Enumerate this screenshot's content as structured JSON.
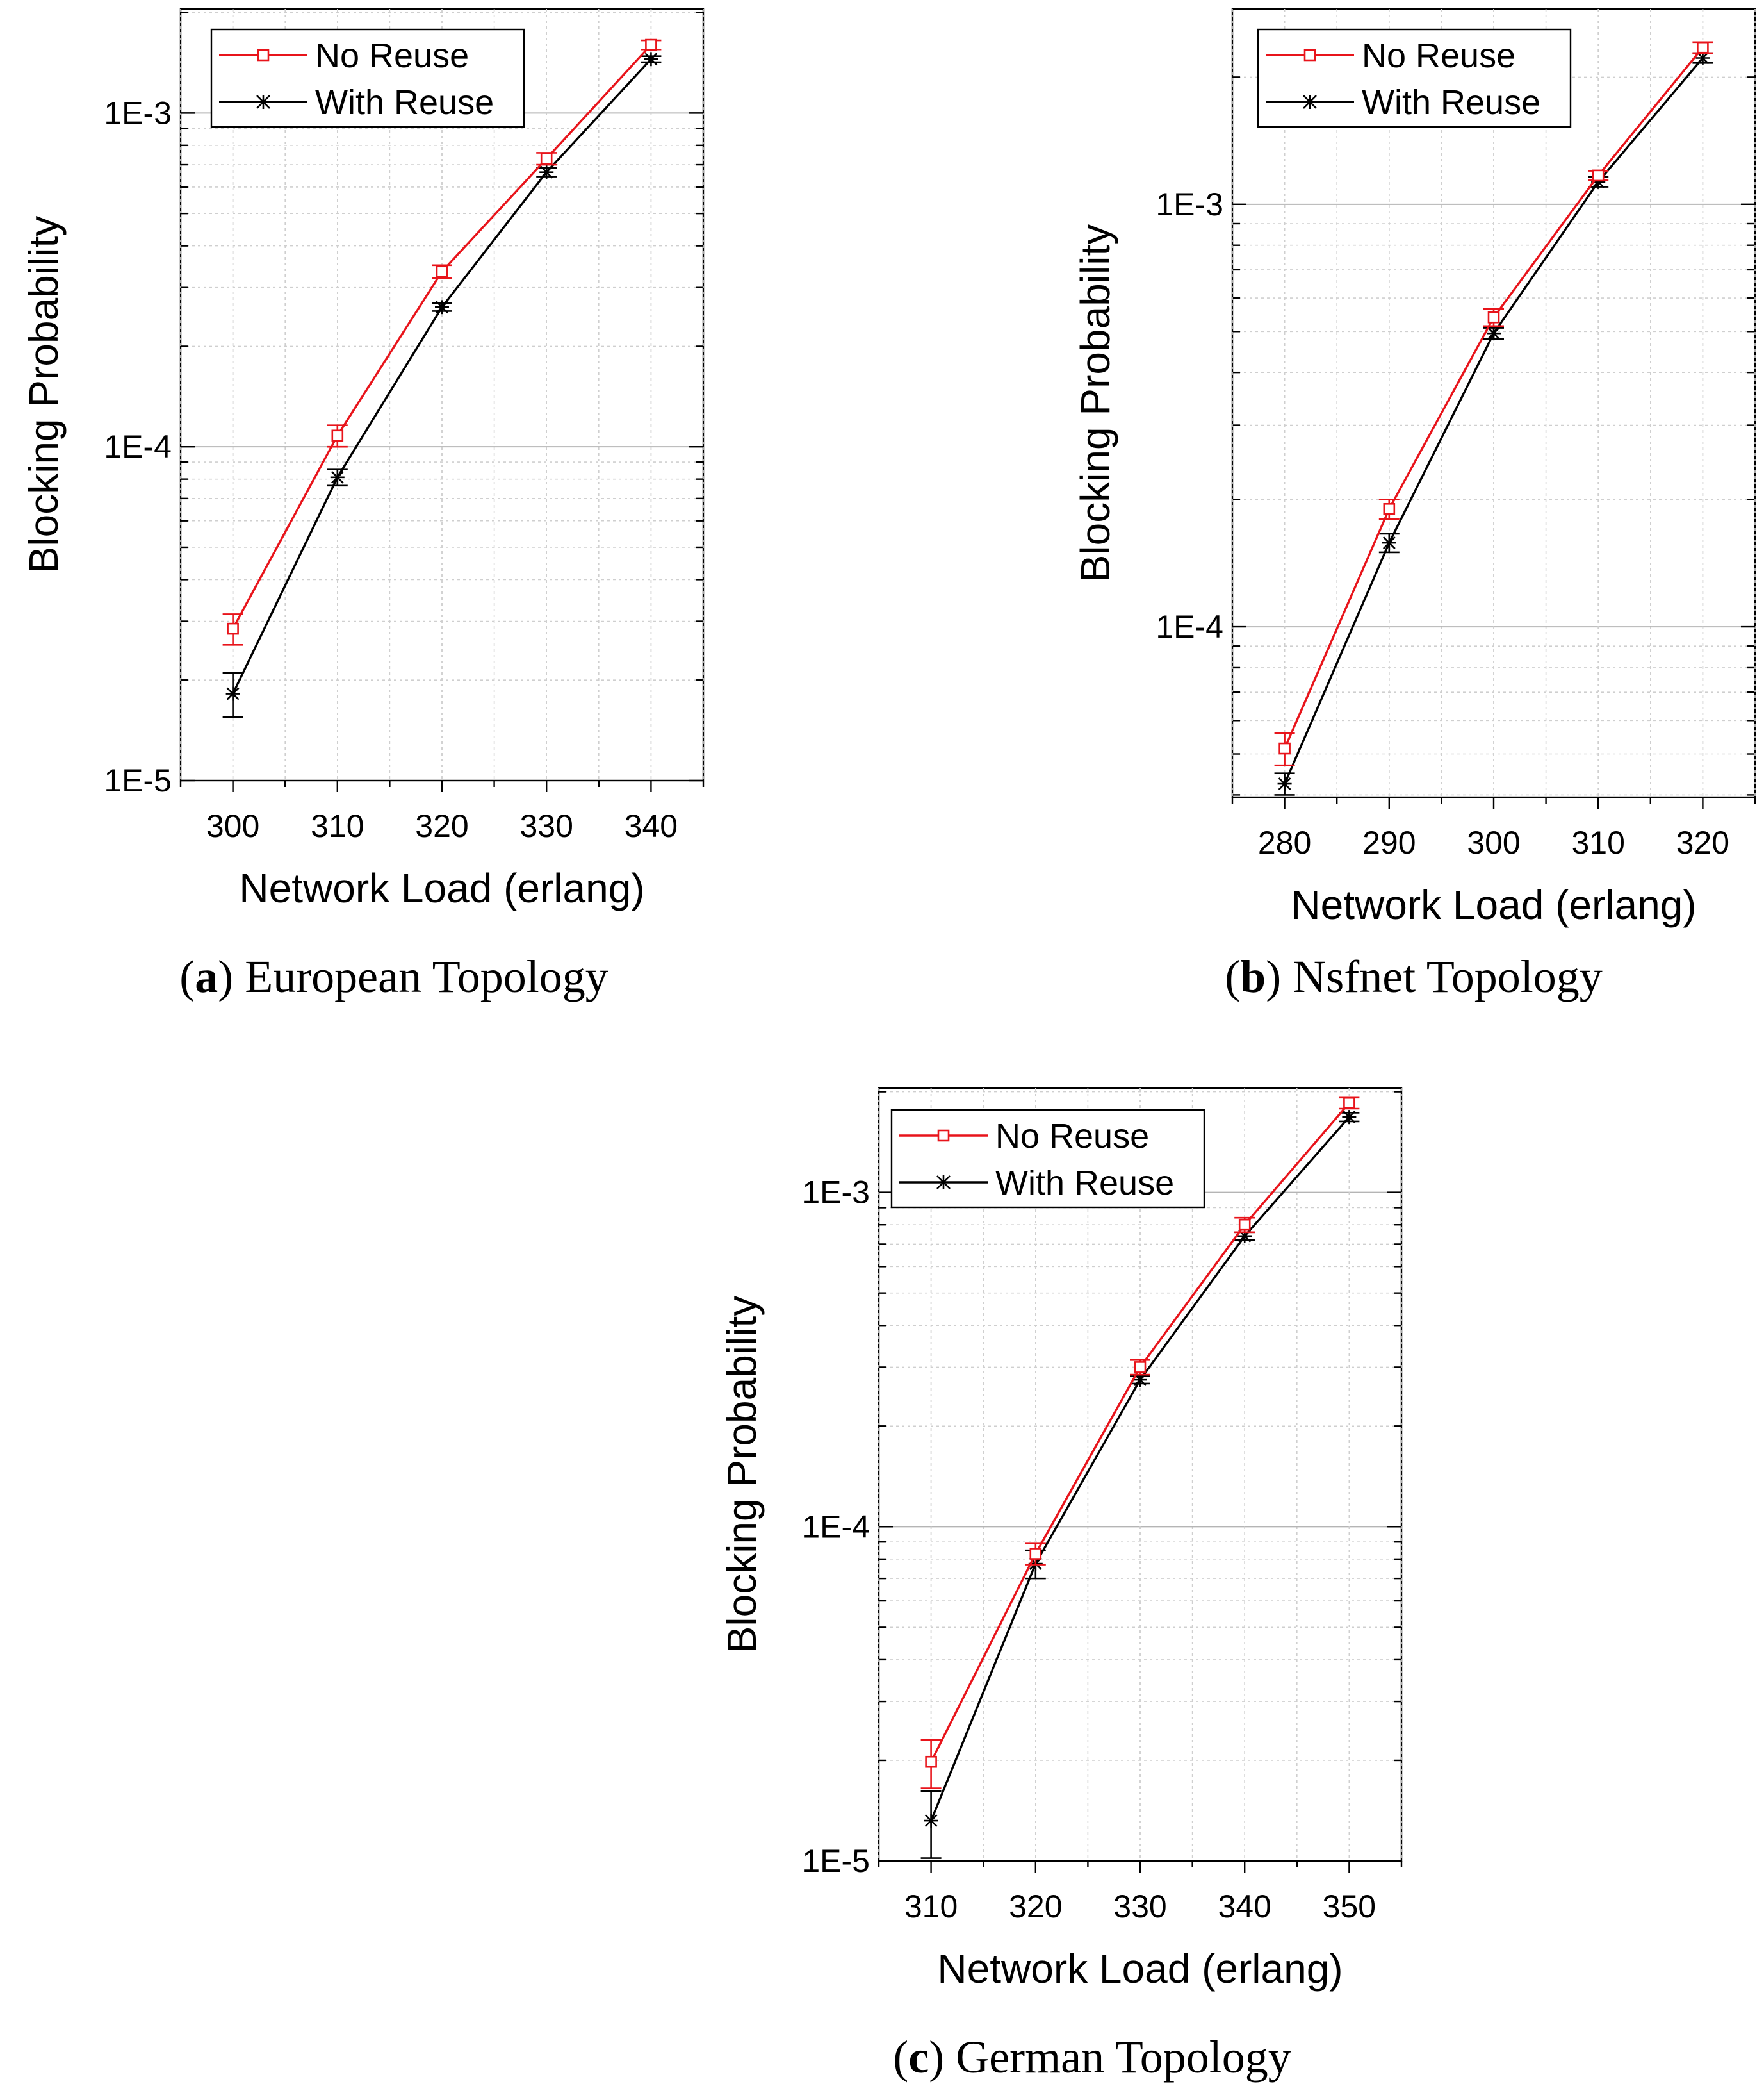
{
  "colors": {
    "no_reuse": "#e8141b",
    "with_reuse": "#000000",
    "grid": "#b5b5b5"
  },
  "chart_data": [
    {
      "id": "european",
      "type": "line",
      "yscale": "log",
      "caption_letter": "a",
      "caption_text": " European Topology",
      "xlabel": "Network Load (erlang)",
      "ylabel": "Blocking Probability",
      "x": [
        300,
        310,
        320,
        330,
        340
      ],
      "xlim": [
        295,
        345
      ],
      "ylim": [
        1e-05,
        0.00205
      ],
      "ytick_values": [
        1e-05,
        0.0001,
        0.001
      ],
      "ytick_labels": [
        "1E-5",
        "1E-4",
        "1E-3"
      ],
      "legend": [
        "No Reuse",
        "With Reuse"
      ],
      "series": [
        {
          "name": "No Reuse",
          "marker": "square",
          "values": [
            2.85e-05,
            0.000108,
            0.000335,
            0.00073,
            0.0016
          ],
          "err_low": [
            2.55e-05,
            0.0001,
            0.00032,
            0.0007,
            0.00155
          ],
          "err_high": [
            3.15e-05,
            0.000116,
            0.00035,
            0.00076,
            0.00165
          ]
        },
        {
          "name": "With Reuse",
          "marker": "star",
          "values": [
            1.82e-05,
            8.1e-05,
            0.000262,
            0.000665,
            0.00145
          ],
          "err_low": [
            1.55e-05,
            7.65e-05,
            0.000255,
            0.000645,
            0.00142
          ],
          "err_high": [
            2.1e-05,
            8.55e-05,
            0.000269,
            0.000685,
            0.00148
          ]
        }
      ]
    },
    {
      "id": "nsfnet",
      "type": "line",
      "yscale": "log",
      "caption_letter": "b",
      "caption_text": " Nsfnet Topology",
      "xlabel": "Network Load (erlang)",
      "ylabel": "Blocking Probability",
      "x": [
        280,
        290,
        300,
        310,
        320
      ],
      "xlim": [
        275,
        325
      ],
      "ylim": [
        3.95e-05,
        0.0029
      ],
      "ytick_values": [
        0.0001,
        0.001
      ],
      "ytick_labels": [
        "1E-4",
        "1E-3"
      ],
      "legend": [
        "No Reuse",
        "With Reuse"
      ],
      "series": [
        {
          "name": "No Reuse",
          "marker": "square",
          "values": [
            5.15e-05,
            0.00019,
            0.00054,
            0.00117,
            0.00235
          ],
          "err_low": [
            4.7e-05,
            0.00018,
            0.000515,
            0.00114,
            0.00228
          ],
          "err_high": [
            5.6e-05,
            0.0002,
            0.000565,
            0.0012,
            0.00242
          ]
        },
        {
          "name": "With Reuse",
          "marker": "star",
          "values": [
            4.25e-05,
            0.000158,
            0.000495,
            0.00113,
            0.00222
          ],
          "err_low": [
            4e-05,
            0.00015,
            0.00048,
            0.0011,
            0.00216
          ],
          "err_high": [
            4.5e-05,
            0.000166,
            0.00051,
            0.00116,
            0.00228
          ]
        }
      ]
    },
    {
      "id": "german",
      "type": "line",
      "yscale": "log",
      "caption_letter": "c",
      "caption_text": " German Topology",
      "xlabel": "Network Load (erlang)",
      "ylabel": "Blocking Probability",
      "x": [
        310,
        320,
        330,
        340,
        350
      ],
      "xlim": [
        305,
        355
      ],
      "ylim": [
        1e-05,
        0.00205
      ],
      "ytick_values": [
        1e-05,
        0.0001,
        0.001
      ],
      "ytick_labels": [
        "1E-5",
        "1E-4",
        "1E-3"
      ],
      "legend": [
        "No Reuse",
        "With Reuse"
      ],
      "series": [
        {
          "name": "No Reuse",
          "marker": "square",
          "values": [
            1.98e-05,
            8.3e-05,
            0.0003,
            0.0008,
            0.00185
          ],
          "err_low": [
            1.65e-05,
            7.7e-05,
            0.000285,
            0.00076,
            0.00178
          ],
          "err_high": [
            2.3e-05,
            8.9e-05,
            0.000315,
            0.00084,
            0.00192
          ]
        },
        {
          "name": "With Reuse",
          "marker": "star",
          "values": [
            1.32e-05,
            7.75e-05,
            0.000275,
            0.00074,
            0.00168
          ],
          "err_low": [
            1.02e-05,
            7e-05,
            0.000268,
            0.00072,
            0.00163
          ],
          "err_high": [
            1.62e-05,
            8.5e-05,
            0.000282,
            0.00076,
            0.00173
          ]
        }
      ]
    }
  ]
}
